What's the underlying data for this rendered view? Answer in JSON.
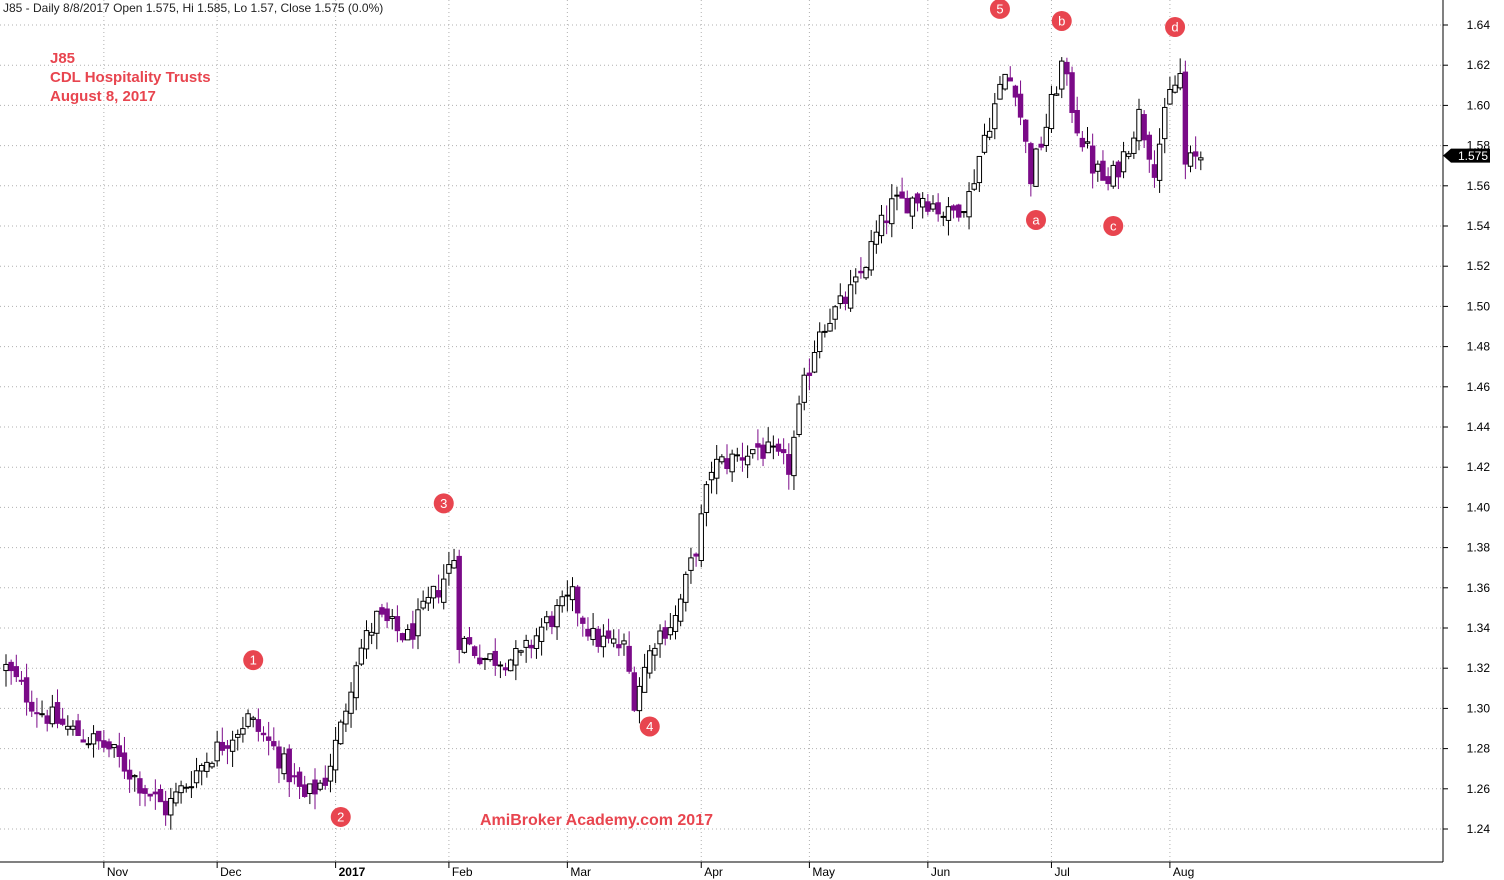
{
  "header": {
    "info": "J85 - Daily 8/8/2017 Open 1.575, Hi 1.585, Lo 1.57, Close 1.575 (0.0%)"
  },
  "title_block": {
    "line1": "J85",
    "line2": "CDL Hospitality Trusts",
    "line3": "August 8, 2017"
  },
  "watermark": "AmiBroker Academy.com  2017",
  "colors": {
    "up_fill": "#ffffff",
    "down_fill": "#7b0a88",
    "candle_outline": "#000000",
    "marker_fill": "#e8454f",
    "grid": "#b0b0b0",
    "price_tag_bg": "#000000"
  },
  "chart_data": {
    "type": "candlestick",
    "symbol": "J85",
    "period": "Daily",
    "ylim": [
      1.22,
      1.65
    ],
    "y_ticks": [
      "1.24",
      "1.26",
      "1.28",
      "1.30",
      "1.32",
      "1.34",
      "1.36",
      "1.38",
      "1.40",
      "1.42",
      "1.44",
      "1.46",
      "1.48",
      "1.50",
      "1.52",
      "1.54",
      "1.56",
      "1.58",
      "1.60",
      "1.62",
      "1.64"
    ],
    "x_labels": [
      {
        "label": "Nov",
        "index": 19,
        "bold": false
      },
      {
        "label": "Dec",
        "index": 41,
        "bold": false
      },
      {
        "label": "2017",
        "index": 64,
        "bold": true
      },
      {
        "label": "Feb",
        "index": 86,
        "bold": false
      },
      {
        "label": "Mar",
        "index": 109,
        "bold": false
      },
      {
        "label": "Apr",
        "index": 135,
        "bold": false
      },
      {
        "label": "May",
        "index": 156,
        "bold": false
      },
      {
        "label": "Jun",
        "index": 179,
        "bold": false
      },
      {
        "label": "Jul",
        "index": 203,
        "bold": false
      },
      {
        "label": "Aug",
        "index": 226,
        "bold": false
      }
    ],
    "last_price": "1.575",
    "anchors": [
      [
        0,
        1.32
      ],
      [
        6,
        1.3
      ],
      [
        12,
        1.29
      ],
      [
        20,
        1.28
      ],
      [
        27,
        1.26
      ],
      [
        31,
        1.25
      ],
      [
        39,
        1.275
      ],
      [
        47,
        1.295
      ],
      [
        52,
        1.28
      ],
      [
        58,
        1.255
      ],
      [
        62,
        1.265
      ],
      [
        65,
        1.29
      ],
      [
        68,
        1.325
      ],
      [
        72,
        1.345
      ],
      [
        78,
        1.335
      ],
      [
        84,
        1.36
      ],
      [
        87,
        1.375
      ],
      [
        88,
        1.335
      ],
      [
        93,
        1.325
      ],
      [
        100,
        1.325
      ],
      [
        104,
        1.34
      ],
      [
        110,
        1.355
      ],
      [
        114,
        1.335
      ],
      [
        120,
        1.33
      ],
      [
        122,
        1.305
      ],
      [
        126,
        1.335
      ],
      [
        130,
        1.345
      ],
      [
        134,
        1.38
      ],
      [
        137,
        1.42
      ],
      [
        142,
        1.425
      ],
      [
        146,
        1.43
      ],
      [
        152,
        1.42
      ],
      [
        155,
        1.46
      ],
      [
        158,
        1.49
      ],
      [
        162,
        1.5
      ],
      [
        165,
        1.51
      ],
      [
        169,
        1.535
      ],
      [
        172,
        1.55
      ],
      [
        178,
        1.555
      ],
      [
        183,
        1.545
      ],
      [
        187,
        1.555
      ],
      [
        190,
        1.585
      ],
      [
        194,
        1.615
      ],
      [
        196,
        1.61
      ],
      [
        199,
        1.565
      ],
      [
        202,
        1.59
      ],
      [
        205,
        1.62
      ],
      [
        208,
        1.59
      ],
      [
        211,
        1.57
      ],
      [
        214,
        1.56
      ],
      [
        217,
        1.575
      ],
      [
        220,
        1.595
      ],
      [
        223,
        1.57
      ],
      [
        226,
        1.605
      ],
      [
        228,
        1.615
      ],
      [
        229,
        1.57
      ],
      [
        232,
        1.575
      ]
    ],
    "annotations": [
      {
        "label": "1",
        "index": 48,
        "price": 1.324
      },
      {
        "label": "2",
        "index": 65,
        "price": 1.246
      },
      {
        "label": "3",
        "index": 85,
        "price": 1.402
      },
      {
        "label": "4",
        "index": 125,
        "price": 1.291
      },
      {
        "label": "5",
        "index": 193,
        "price": 1.648
      },
      {
        "label": "a",
        "index": 200,
        "price": 1.543
      },
      {
        "label": "b",
        "index": 205,
        "price": 1.642
      },
      {
        "label": "c",
        "index": 215,
        "price": 1.54
      },
      {
        "label": "d",
        "index": 227,
        "price": 1.639
      }
    ]
  }
}
